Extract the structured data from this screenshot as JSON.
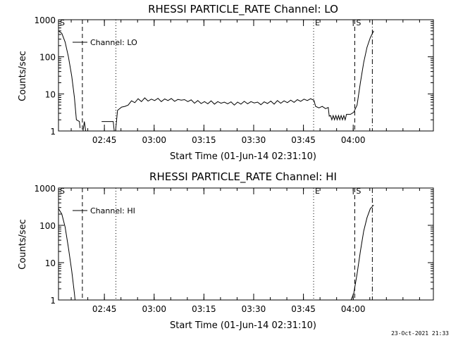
{
  "chart_data": [
    {
      "type": "line",
      "title": "RHESSI PARTICLE_RATE Channel: LO",
      "xlabel": "Start Time (01-Jun-14 02:31:10)",
      "ylabel": "Counts/sec",
      "yscale": "log",
      "ylim": [
        1,
        1000
      ],
      "xlim_minutes": [
        0,
        113
      ],
      "x_ticks": [
        "02:45",
        "03:00",
        "03:15",
        "03:30",
        "03:45",
        "04:00"
      ],
      "y_ticks": [
        "1",
        "10",
        "100",
        "1000"
      ],
      "legend": "Channel: LO",
      "markers": [
        {
          "label": "S",
          "minute": 0,
          "style": "dashdot"
        },
        {
          "label": "",
          "minute": 7.2,
          "style": "dashed"
        },
        {
          "label": "",
          "minute": 17.3,
          "style": "dotted"
        },
        {
          "label": "E",
          "minute": 76.9,
          "style": "dotted"
        },
        {
          "label": "S",
          "minute": 89.3,
          "style": "dashed"
        },
        {
          "label": "",
          "minute": 94.6,
          "style": "dashdot"
        }
      ],
      "series": [
        {
          "name": "Channel: LO",
          "segments": [
            [
              [
                0,
                500
              ],
              [
                1,
                430
              ],
              [
                2,
                250
              ],
              [
                3,
                100
              ],
              [
                4,
                30
              ],
              [
                4.8,
                8
              ],
              [
                5.4,
                2
              ],
              [
                6.3,
                1.8
              ],
              [
                6.5,
                1.2
              ]
            ],
            [
              [
                7.4,
                1
              ],
              [
                7.8,
                1.8
              ],
              [
                8.2,
                1
              ]
            ],
            [
              [
                13,
                1.8
              ],
              [
                16.5,
                1.8
              ],
              [
                16.8,
                1
              ]
            ],
            [
              [
                17.2,
                1
              ],
              [
                17.8,
                3.6
              ],
              [
                19,
                4.4
              ],
              [
                20,
                4.6
              ],
              [
                21,
                5
              ],
              [
                22,
                6.5
              ],
              [
                23,
                5.8
              ],
              [
                24,
                7.4
              ],
              [
                25,
                6.2
              ],
              [
                26,
                7.8
              ],
              [
                27,
                6.4
              ],
              [
                28,
                7.2
              ],
              [
                29,
                6.6
              ],
              [
                30,
                7.6
              ],
              [
                31,
                6.2
              ],
              [
                32,
                7.3
              ],
              [
                33,
                6.6
              ],
              [
                34,
                7.5
              ],
              [
                35,
                6.3
              ],
              [
                36,
                7.1
              ],
              [
                37,
                6.8
              ],
              [
                38,
                7.0
              ],
              [
                39,
                6.2
              ],
              [
                40,
                6.9
              ],
              [
                41,
                5.6
              ],
              [
                42,
                6.6
              ],
              [
                43,
                5.5
              ],
              [
                44,
                6.2
              ],
              [
                45,
                5.4
              ],
              [
                46,
                6.5
              ],
              [
                47,
                5.3
              ],
              [
                48,
                6.2
              ],
              [
                49,
                5.6
              ],
              [
                50,
                6.0
              ],
              [
                51,
                5.4
              ],
              [
                52,
                6.1
              ],
              [
                53,
                5.0
              ],
              [
                54,
                6.0
              ],
              [
                55,
                5.3
              ],
              [
                56,
                6.3
              ],
              [
                57,
                5.4
              ],
              [
                58,
                6.2
              ],
              [
                59,
                5.7
              ],
              [
                60,
                6.0
              ],
              [
                61,
                5.1
              ],
              [
                62,
                6.1
              ],
              [
                63,
                5.5
              ],
              [
                64,
                6.4
              ],
              [
                65,
                5.3
              ],
              [
                66,
                6.6
              ],
              [
                67,
                5.6
              ],
              [
                68,
                6.5
              ],
              [
                69,
                5.8
              ],
              [
                70,
                6.8
              ],
              [
                71,
                5.9
              ],
              [
                72,
                7.0
              ],
              [
                73,
                6.3
              ],
              [
                74,
                7.2
              ],
              [
                75,
                6.6
              ],
              [
                76,
                7.4
              ],
              [
                77,
                6.7
              ],
              [
                77.5,
                4.6
              ],
              [
                78.5,
                4.2
              ],
              [
                79.5,
                4.6
              ],
              [
                80.5,
                4.0
              ],
              [
                81.3,
                4.3
              ],
              [
                81.6,
                2.5
              ],
              [
                82,
                2.6
              ],
              [
                82.4,
                2.0
              ],
              [
                82.8,
                2.6
              ],
              [
                83.2,
                2.0
              ],
              [
                83.6,
                2.6
              ],
              [
                84,
                2.0
              ],
              [
                84.4,
                2.6
              ],
              [
                84.8,
                2.0
              ],
              [
                85.2,
                2.6
              ],
              [
                85.6,
                2.0
              ],
              [
                86,
                2.6
              ],
              [
                86.4,
                2.0
              ],
              [
                86.8,
                2.8
              ],
              [
                88,
                2.8
              ],
              [
                89,
                3.2
              ],
              [
                90,
                5
              ],
              [
                91,
                20
              ],
              [
                92,
                70
              ],
              [
                93,
                180
              ],
              [
                94,
                330
              ],
              [
                95,
                500
              ]
            ]
          ]
        }
      ]
    },
    {
      "type": "line",
      "title": "RHESSI PARTICLE_RATE Channel: HI",
      "xlabel": "Start Time (01-Jun-14 02:31:10)",
      "ylabel": "Counts/sec",
      "yscale": "log",
      "ylim": [
        1,
        1000
      ],
      "xlim_minutes": [
        0,
        113
      ],
      "x_ticks": [
        "02:45",
        "03:00",
        "03:15",
        "03:30",
        "03:45",
        "04:00"
      ],
      "y_ticks": [
        "1",
        "10",
        "100",
        "1000"
      ],
      "legend": "Channel: HI",
      "markers": [
        {
          "label": "S",
          "minute": 0,
          "style": "dashdot"
        },
        {
          "label": "",
          "minute": 7.2,
          "style": "dashed"
        },
        {
          "label": "",
          "minute": 17.3,
          "style": "dotted"
        },
        {
          "label": "E",
          "minute": 76.9,
          "style": "dotted"
        },
        {
          "label": "S",
          "minute": 89.3,
          "style": "dashed"
        },
        {
          "label": "",
          "minute": 94.6,
          "style": "dashdot"
        }
      ],
      "series": [
        {
          "name": "Channel: HI",
          "segments": [
            [
              [
                0,
                280
              ],
              [
                1,
                200
              ],
              [
                2,
                90
              ],
              [
                3,
                25
              ],
              [
                4,
                6
              ],
              [
                4.8,
                1.5
              ],
              [
                5,
                1
              ]
            ],
            [
              [
                88.2,
                1
              ],
              [
                89,
                1.5
              ],
              [
                90,
                5
              ],
              [
                91,
                20
              ],
              [
                92,
                70
              ],
              [
                93,
                160
              ],
              [
                94,
                280
              ],
              [
                95,
                350
              ]
            ]
          ]
        }
      ]
    }
  ],
  "footer": {
    "timestamp": "23-Oct-2021 21:33"
  }
}
